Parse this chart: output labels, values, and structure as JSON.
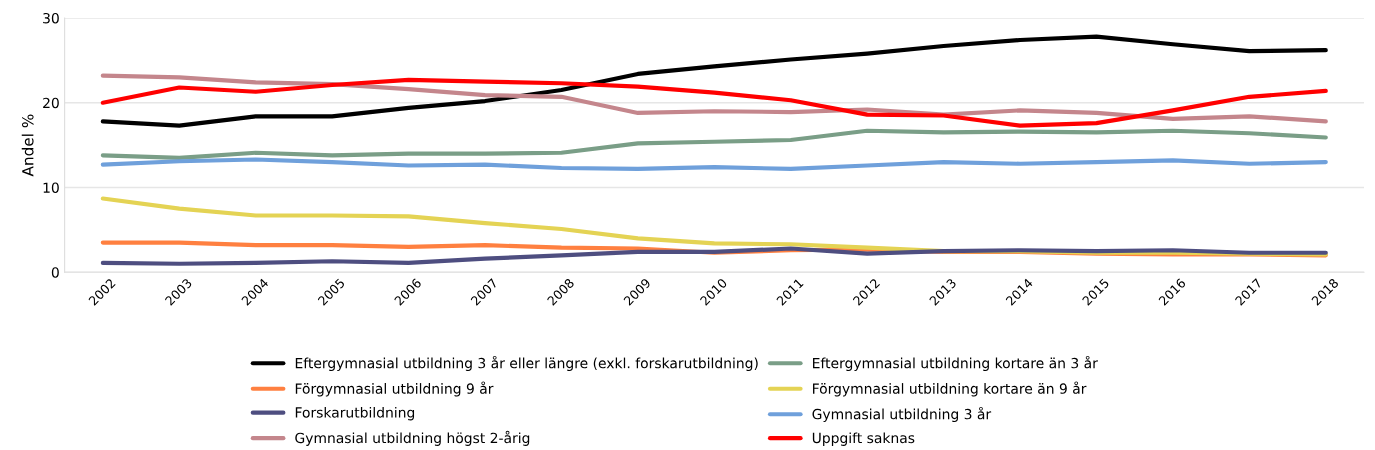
{
  "chart_data": {
    "type": "line",
    "ylabel": "Andel %",
    "categories": [
      "2002",
      "2003",
      "2004",
      "2005",
      "2006",
      "2007",
      "2008",
      "2009",
      "2010",
      "2011",
      "2012",
      "2013",
      "2014",
      "2015",
      "2016",
      "2017",
      "2018"
    ],
    "ylim": [
      0,
      30
    ],
    "yticks": [
      0,
      10,
      20,
      30
    ],
    "grid": "y",
    "legend": "bottom",
    "marker": "none",
    "line_style": "solid",
    "series": [
      {
        "name": "Eftergymnasial utbildning 3 år eller längre (exkl. forskarutbildning)",
        "color": "#000000",
        "values": [
          17.8,
          17.3,
          18.4,
          18.4,
          19.4,
          20.2,
          21.5,
          23.4,
          24.3,
          25.1,
          25.8,
          26.7,
          27.4,
          27.8,
          26.9,
          26.1,
          26.2
        ]
      },
      {
        "name": "Eftergymnasial utbildning kortare än 3 år",
        "color": "#7a9e87",
        "values": [
          13.8,
          13.5,
          14.1,
          13.8,
          14.0,
          14.0,
          14.1,
          15.2,
          15.4,
          15.6,
          16.7,
          16.5,
          16.6,
          16.5,
          16.7,
          16.4,
          15.9
        ]
      },
      {
        "name": "Förgymnasial utbildning 9 år",
        "color": "#ff8040",
        "values": [
          3.5,
          3.5,
          3.2,
          3.2,
          3.0,
          3.2,
          2.9,
          2.8,
          2.3,
          2.6,
          2.7,
          2.4,
          2.4,
          2.2,
          2.1,
          2.1,
          2.0
        ]
      },
      {
        "name": "Förgymnasial utbildning kortare än 9 år",
        "color": "#e4d354",
        "values": [
          8.7,
          7.5,
          6.7,
          6.7,
          6.6,
          5.8,
          5.1,
          4.0,
          3.4,
          3.3,
          2.9,
          2.5,
          2.5,
          2.3,
          2.3,
          2.2,
          2.1
        ]
      },
      {
        "name": "Forskarutbildning",
        "color": "#4e4e80",
        "values": [
          1.1,
          1.0,
          1.1,
          1.3,
          1.1,
          1.6,
          2.0,
          2.4,
          2.4,
          2.8,
          2.2,
          2.5,
          2.6,
          2.5,
          2.6,
          2.3,
          2.3
        ]
      },
      {
        "name": "Gymnasial utbildning 3 år",
        "color": "#6fa0db",
        "values": [
          12.7,
          13.1,
          13.3,
          13.0,
          12.6,
          12.7,
          12.3,
          12.2,
          12.4,
          12.2,
          12.6,
          13.0,
          12.8,
          13.0,
          13.2,
          12.8,
          13.0
        ]
      },
      {
        "name": "Gymnasial utbildning högst 2-årig",
        "color": "#c4868c",
        "values": [
          23.2,
          23.0,
          22.4,
          22.2,
          21.6,
          20.9,
          20.7,
          18.8,
          19.0,
          18.9,
          19.2,
          18.6,
          19.1,
          18.8,
          18.1,
          18.4,
          17.8
        ]
      },
      {
        "name": "Uppgift saknas",
        "color": "#ff0000",
        "values": [
          20.0,
          21.8,
          21.3,
          22.1,
          22.7,
          22.5,
          22.3,
          21.9,
          21.2,
          20.3,
          18.6,
          18.5,
          17.3,
          17.6,
          19.1,
          20.7,
          21.4
        ]
      }
    ]
  }
}
